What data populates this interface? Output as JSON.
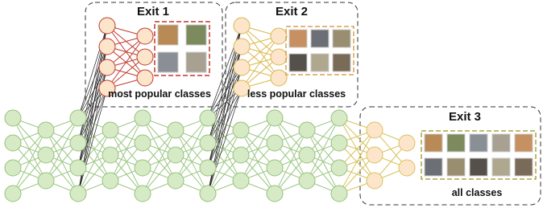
{
  "exits": [
    {
      "title": "Exit 1",
      "caption": "most popular classes"
    },
    {
      "title": "Exit 2",
      "caption": "less popular classes"
    },
    {
      "title": "Exit 3",
      "caption": "all classes"
    }
  ]
}
